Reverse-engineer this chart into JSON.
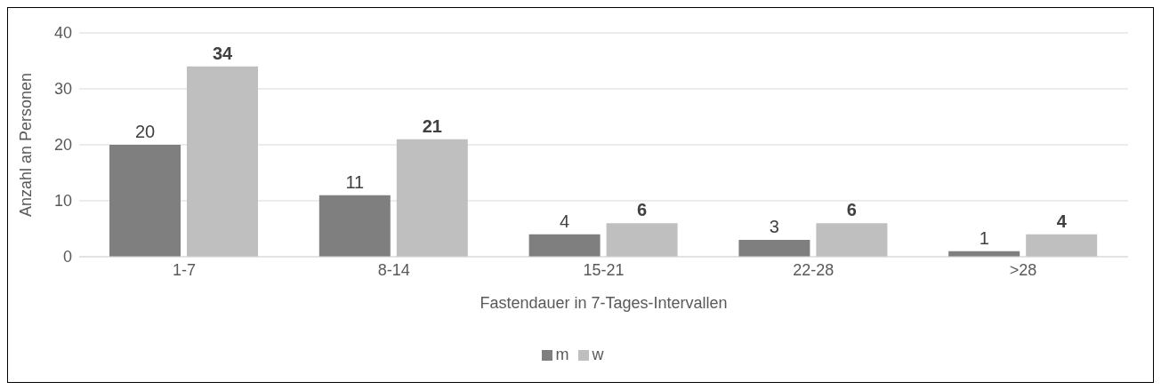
{
  "chart_data": {
    "type": "bar",
    "xlabel": "Fastendauer in 7-Tages-Intervallen",
    "ylabel": "Anzahl an Personen",
    "categories": [
      "1-7",
      "8-14",
      "15-21",
      "22-28",
      ">28"
    ],
    "series": [
      {
        "name": "m",
        "color": "#7f7f7f",
        "values": [
          20,
          11,
          4,
          3,
          1
        ]
      },
      {
        "name": "w",
        "color": "#bfbfbf",
        "values": [
          34,
          21,
          6,
          6,
          4
        ]
      }
    ],
    "ylim": [
      0,
      40
    ],
    "yticks": [
      0,
      10,
      20,
      30,
      40
    ],
    "grid": "y",
    "legend": "bottom",
    "data_labels": true
  }
}
